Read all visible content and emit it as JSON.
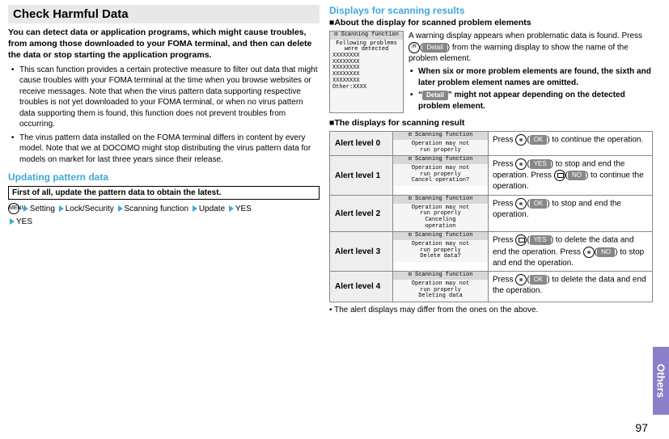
{
  "left": {
    "hdr": "Check Harmful Data",
    "intro": "You can detect data or application programs, which might cause troubles, from among those downloaded to your FOMA terminal, and then can delete the data or stop starting the application programs.",
    "bullets": [
      "This scan function provides a certain protective measure to filter out data that might cause troubles with your FOMA terminal at the time when you browse websites or receive messages. Note that when the virus pattern data supporting respective troubles is not yet downloaded to your FOMA terminal, or when no virus pattern data supporting them is found, this function does not prevent troubles from occurring.",
      "The virus pattern data installed on the FOMA terminal differs in content by every model. Note that we at DOCOMO might stop distributing the virus pattern data for models on market for last three years since their release."
    ],
    "sub_hdr": "Updating pattern data",
    "boxnote": "First of all, update the pattern data to obtain the latest.",
    "path_icon": "MENU",
    "path": [
      "Setting",
      "Lock/Security",
      "Scanning function",
      "Update",
      "YES",
      "YES"
    ]
  },
  "right": {
    "blue_hdr": "Displays for scanning results",
    "about_hdr": "About the display for scanned problem elements",
    "screen_title": "Scanning function",
    "about_screen": {
      "lines": [
        "Following problems",
        "were detected"
      ],
      "items": [
        "XXXXXXXX",
        "XXXXXXXX",
        "XXXXXXXX",
        "XXXXXXXX",
        "XXXXXXXX"
      ],
      "other": "Other:XXXX"
    },
    "about_text": "A warning display appears when problematic data is found. Press",
    "about_text2": "from the warning display to show the name of the problem element.",
    "detail_label": "Detail",
    "about_bullets": [
      "When six or more problem elements are found, the sixth and later problem element names are omitted.",
      "“Detail” might not appear depending on the detected problem element."
    ],
    "results_hdr": "The displays for scanning result",
    "levels": [
      {
        "name": "Alert level 0",
        "screen": [
          "Operation may not",
          "run properly"
        ],
        "action": "Press ◯(OK) to continue the operation.",
        "btns": [
          [
            "dot",
            "OK"
          ]
        ]
      },
      {
        "name": "Alert level 1",
        "screen": [
          "Operation may not",
          "run properly",
          "Cancel operation?"
        ],
        "action": "Press ◯(YES) to stop and end the operation. Press ◯(NO) to continue the operation.",
        "btns": [
          [
            "dot",
            "YES"
          ],
          [
            "cam",
            "NO"
          ]
        ]
      },
      {
        "name": "Alert level 2",
        "screen": [
          "Operation may not",
          "run properly",
          "Canceling",
          "operation"
        ],
        "action": "Press ◯(OK) to stop and end the operation.",
        "btns": [
          [
            "dot",
            "OK"
          ]
        ]
      },
      {
        "name": "Alert level 3",
        "screen": [
          "Operation may not",
          "run properly",
          "Delete data?"
        ],
        "action": "Press ◯(YES) to delete the data and end the operation. Press ◯(NO) to stop and end the operation.",
        "btns": [
          [
            "cam",
            "YES"
          ],
          [
            "dot",
            "NO"
          ]
        ]
      },
      {
        "name": "Alert level 4",
        "screen": [
          "Operation may not",
          "run properly",
          "Deleting data"
        ],
        "action": "Press ◯(OK) to delete the data and end the operation.",
        "btns": [
          [
            "dot",
            "OK"
          ]
        ]
      }
    ],
    "footnote": "The alert displays may differ from the ones on the above."
  },
  "side_tab": "Others",
  "page_num": "97"
}
